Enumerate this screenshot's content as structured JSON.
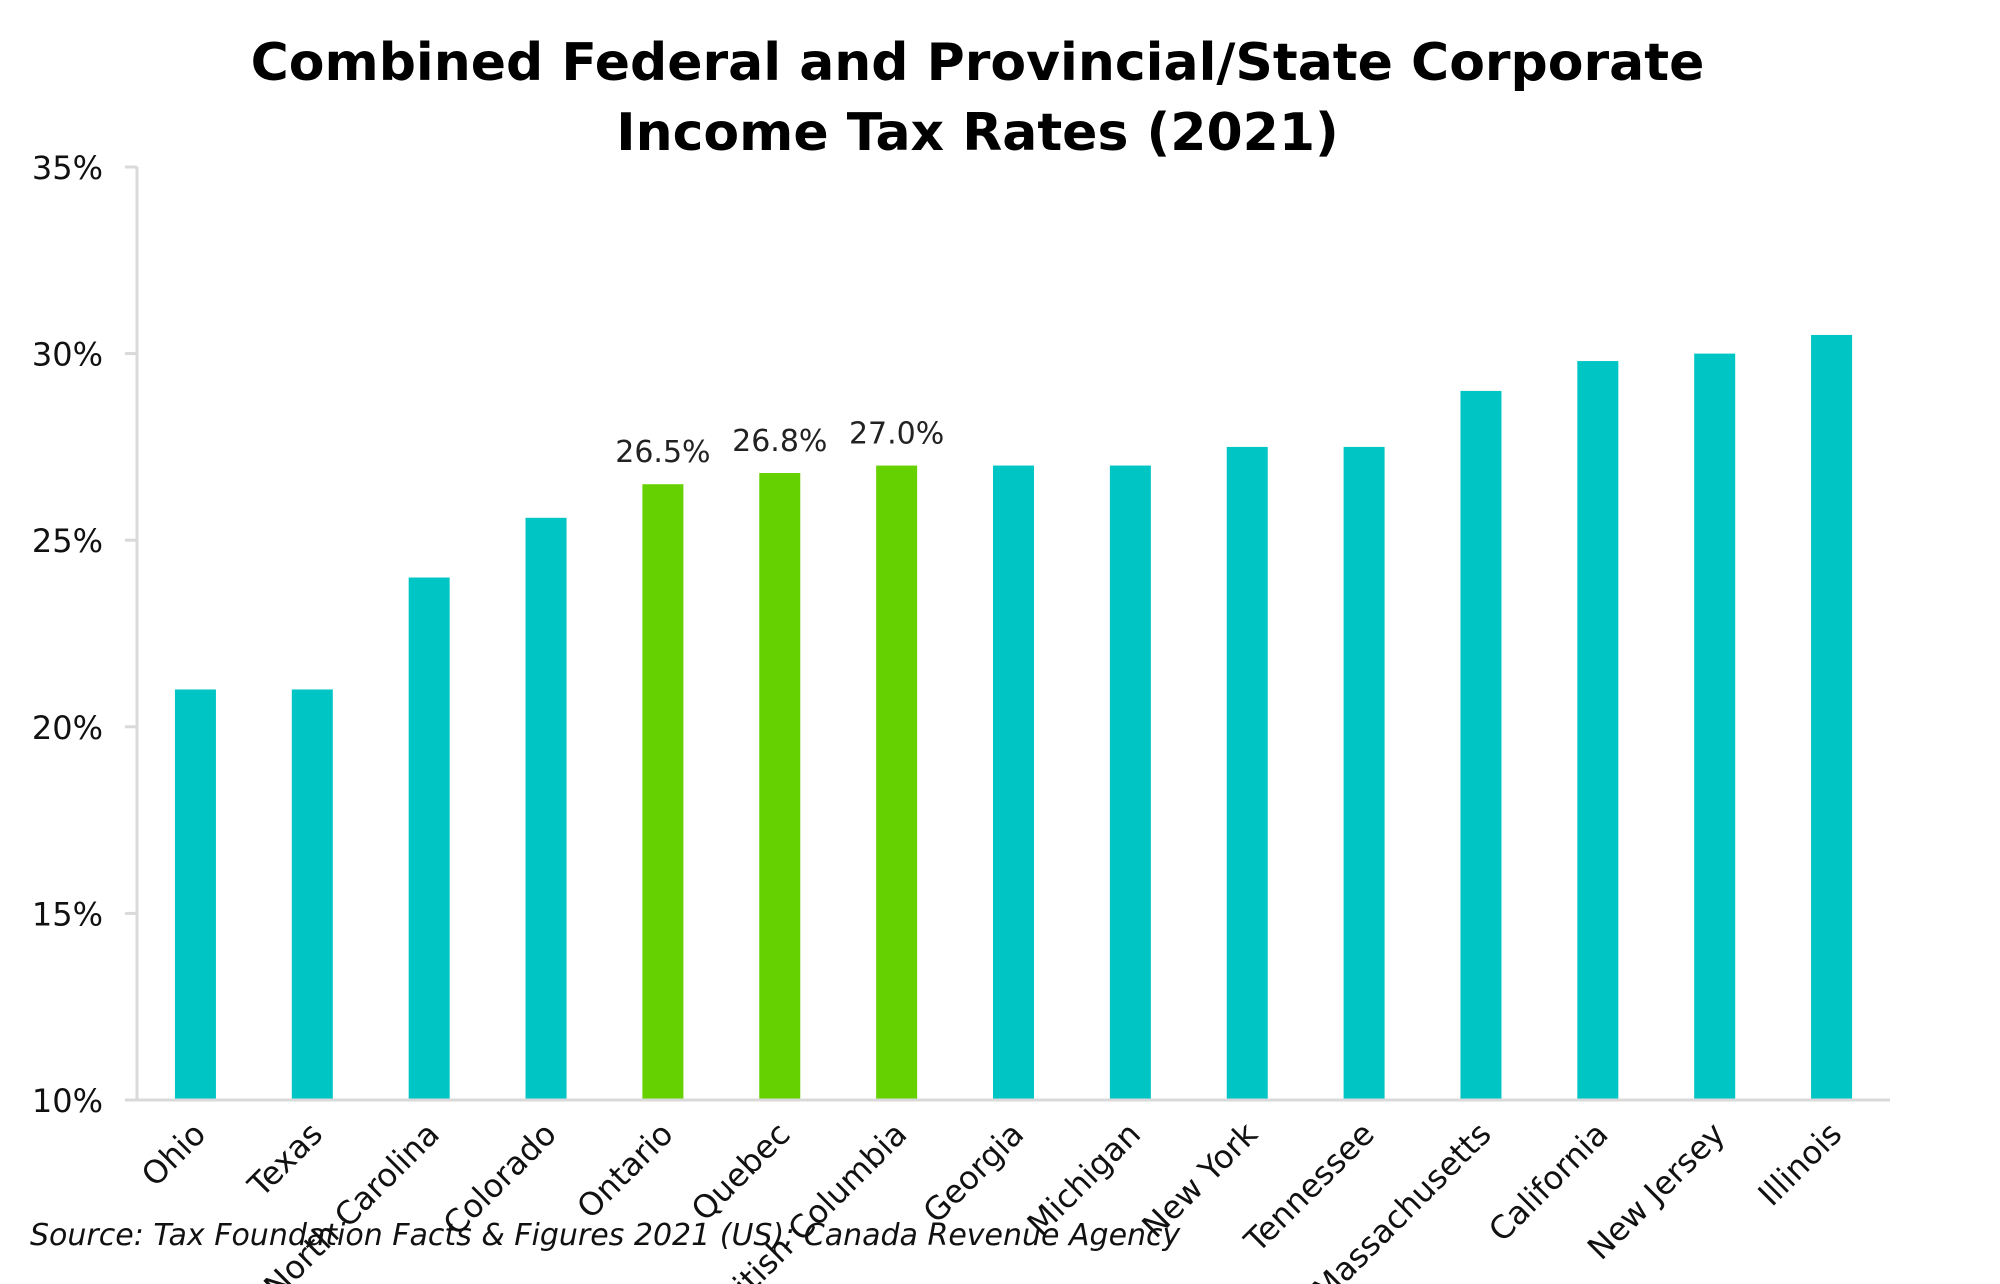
{
  "chart_data": {
    "type": "bar",
    "title_lines": [
      "Combined Federal and Provincial/State Corporate",
      "Income Tax Rates (2021)"
    ],
    "categories": [
      "Ohio",
      "Texas",
      "North Carolina",
      "Colorado",
      "Ontario",
      "Quebec",
      "British Columbia",
      "Georgia",
      "Michigan",
      "New York",
      "Tennessee",
      "Massachusetts",
      "California",
      "New Jersey",
      "Illinois"
    ],
    "values": [
      21.0,
      21.0,
      24.0,
      25.6,
      26.5,
      26.8,
      27.0,
      27.0,
      27.0,
      27.5,
      27.5,
      29.0,
      29.8,
      30.0,
      30.5
    ],
    "highlighted": [
      false,
      false,
      false,
      false,
      true,
      true,
      true,
      false,
      false,
      false,
      false,
      false,
      false,
      false,
      false
    ],
    "data_labels": [
      "",
      "",
      "",
      "",
      "26.5%",
      "26.8%",
      "27.0%",
      "",
      "",
      "",
      "",
      "",
      "",
      "",
      ""
    ],
    "ylim": [
      10,
      35
    ],
    "yticks": [
      "10%",
      "15%",
      "20%",
      "25%",
      "30%",
      "35%"
    ],
    "xlabel": "",
    "ylabel": "",
    "grid": false,
    "legend": "none",
    "colors": {
      "default": "#00C5C5",
      "highlight": "#66D100",
      "axis": "#D9D9D9"
    }
  },
  "source": "Source: Tax Foundation Facts & Figures 2021 (US); Canada Revenue Agency"
}
